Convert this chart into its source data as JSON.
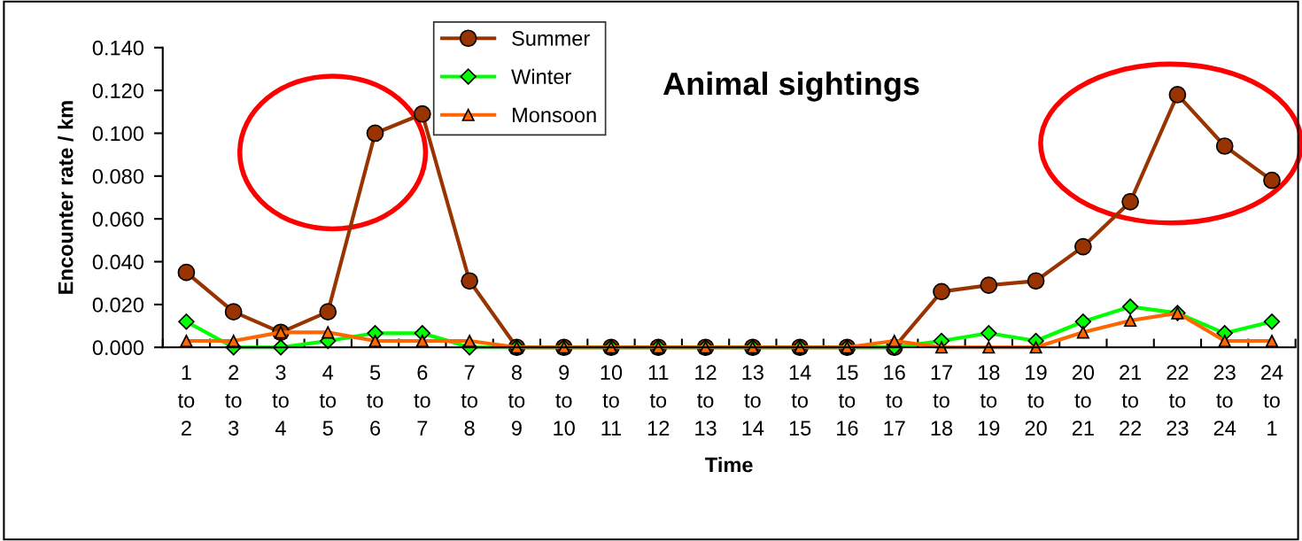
{
  "chart_data": {
    "type": "line",
    "title": "Animal sightings",
    "xlabel": "Time",
    "ylabel": "Encounter rate / km",
    "categories": [
      "1\nto\n2",
      "2\nto\n3",
      "3\nto\n4",
      "4\nto\n5",
      "5\nto\n6",
      "6\nto\n7",
      "7\nto\n8",
      "8\nto\n9",
      "9\nto\n10",
      "10\nto\n11",
      "11\nto\n12",
      "12\nto\n13",
      "13\nto\n14",
      "14\nto\n15",
      "15\nto\n16",
      "16\nto\n17",
      "17\nto\n18",
      "18\nto\n19",
      "19\nto\n20",
      "20\nto\n21",
      "21\nto\n22",
      "22\nto\n23",
      "23\nto\n24",
      "24\nto\n1"
    ],
    "series": [
      {
        "name": "Summer",
        "color": "#993300",
        "marker": "circle",
        "values": [
          0.035,
          0.0166,
          0.007,
          0.0166,
          0.1,
          0.109,
          0.031,
          0,
          0,
          0,
          0,
          0,
          0,
          0,
          0,
          0,
          0.026,
          0.029,
          0.031,
          0.047,
          0.068,
          0.118,
          0.094,
          0.078
        ]
      },
      {
        "name": "Winter",
        "color": "#00ff00",
        "marker": "diamond",
        "values": [
          0.012,
          0,
          0,
          0.003,
          0.0066,
          0.0066,
          0,
          0,
          0,
          0,
          0,
          0,
          0,
          0,
          0,
          0,
          0.003,
          0.0066,
          0.003,
          0.012,
          0.019,
          0.016,
          0.0066,
          0.012
        ]
      },
      {
        "name": "Monsoon",
        "color": "#ff6600",
        "marker": "triangle",
        "values": [
          0.003,
          0.003,
          0.007,
          0.007,
          0.003,
          0.003,
          0.003,
          0,
          0,
          0,
          0,
          0,
          0,
          0,
          0,
          0.003,
          0,
          0,
          0,
          0.007,
          0.0125,
          0.016,
          0.003,
          0.003
        ]
      }
    ],
    "ylim": [
      0,
      0.14
    ],
    "yticks": [
      {
        "value": 0,
        "label": "0.000"
      },
      {
        "value": 0.02,
        "label": "0.020"
      },
      {
        "value": 0.04,
        "label": "0.040"
      },
      {
        "value": 0.06,
        "label": "0.060"
      },
      {
        "value": 0.08,
        "label": "0.080"
      },
      {
        "value": 0.1,
        "label": "0.100"
      },
      {
        "value": 0.12,
        "label": "0.120"
      },
      {
        "value": 0.14,
        "label": "0.140"
      }
    ],
    "grid": false,
    "legend": "top left",
    "line_style": "solid"
  }
}
